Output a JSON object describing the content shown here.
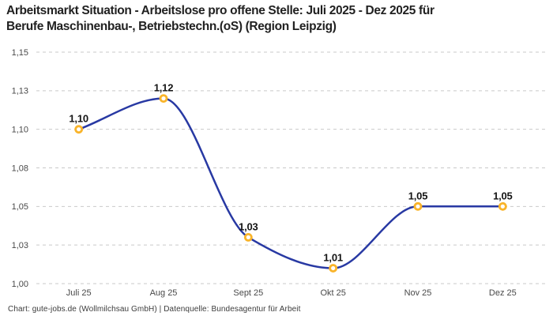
{
  "header": {
    "title": "Arbeitsmarkt Situation - Arbeitslose pro offene Stelle: Juli 2025 - Dez 2025 für\nBerufe Maschinenbau-, Betriebstechn.(oS) (Region Leipzig)"
  },
  "footer": {
    "text": "Chart: gute-jobs.de (Wollmilchsau GmbH) | Datenquelle: Bundesagentur für Arbeit"
  },
  "chart_data": {
    "type": "line",
    "curve": "monotone",
    "title": "Arbeitsmarkt Situation - Arbeitslose pro offene Stelle: Juli 2025 - Dez 2025 für Berufe Maschinenbau-, Betriebstechn.(oS) (Region Leipzig)",
    "categories": [
      "Juli 25",
      "Aug 25",
      "Sept 25",
      "Okt 25",
      "Nov 25",
      "Dez 25"
    ],
    "values": [
      1.1,
      1.12,
      1.03,
      1.01,
      1.05,
      1.05
    ],
    "point_labels": [
      "1,10",
      "1,12",
      "1,03",
      "1,01",
      "1,05",
      "1,05"
    ],
    "xlabel": "",
    "ylabel": "",
    "ylim": [
      1.0,
      1.15
    ],
    "y_ticks": [
      {
        "value": 1.15,
        "label": "1,15"
      },
      {
        "value": 1.125,
        "label": "1,13"
      },
      {
        "value": 1.1,
        "label": "1,10"
      },
      {
        "value": 1.075,
        "label": "1,08"
      },
      {
        "value": 1.05,
        "label": "1,05"
      },
      {
        "value": 1.025,
        "label": "1,03"
      },
      {
        "value": 1.0,
        "label": "1,00"
      }
    ],
    "grid": "horizontal-dashed",
    "legend": "none",
    "colors": {
      "line": "#2839a3",
      "marker_ring": "#f9b42a",
      "marker_fill": "#ffffff",
      "gridline": "#c9c9c9",
      "tick_label": "#494949",
      "point_label": "#141414"
    }
  }
}
